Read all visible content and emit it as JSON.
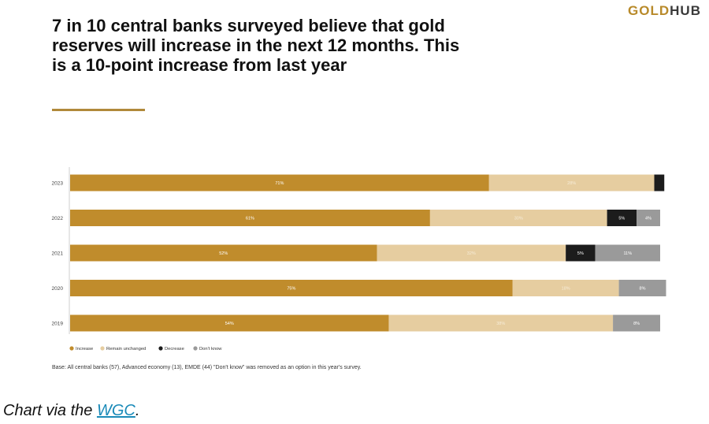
{
  "logo": {
    "part1": "GOLD",
    "part2": "HUB"
  },
  "title": "7 in 10 central banks surveyed believe that gold reserves will increase in the next 12 months. This is a 10-point increase from last year",
  "base_note": "Base: All central banks (57), Advanced economy (13), EMDE (44) \"Don't know\" was removed as an option in this year's survey.",
  "caption": {
    "prefix": "Chart via the ",
    "link": "WGC",
    "suffix": "."
  },
  "colors": {
    "Increase": "#c08c2c",
    "Remain unchanged": "#e6cda0",
    "Decrease": "#1c1c1c",
    "Don't know": "#9a9a9a"
  },
  "chart_data": {
    "type": "bar",
    "orientation": "horizontal",
    "stacked": true,
    "categories": [
      "2023",
      "2022",
      "2021",
      "2020",
      "2019"
    ],
    "series": [
      {
        "name": "Increase",
        "values": [
          71,
          61,
          52,
          75,
          54
        ],
        "labels": [
          "71%",
          "61%",
          "52%",
          "75%",
          "54%"
        ]
      },
      {
        "name": "Remain unchanged",
        "values": [
          28,
          30,
          32,
          18,
          38
        ],
        "labels": [
          "28%",
          "30%",
          "32%",
          "18%",
          "38%"
        ]
      },
      {
        "name": "Decrease",
        "values": [
          1.7,
          5,
          5,
          0,
          0
        ],
        "labels": [
          "",
          "5%",
          "5%",
          "",
          ""
        ]
      },
      {
        "name": "Don't know",
        "values": [
          0,
          4,
          11,
          8,
          8
        ],
        "labels": [
          "",
          "4%",
          "11%",
          "8%",
          "8%"
        ]
      }
    ],
    "xlim": [
      0,
      100
    ],
    "legend": "bottom-left",
    "title": "",
    "xlabel": "",
    "ylabel": ""
  }
}
